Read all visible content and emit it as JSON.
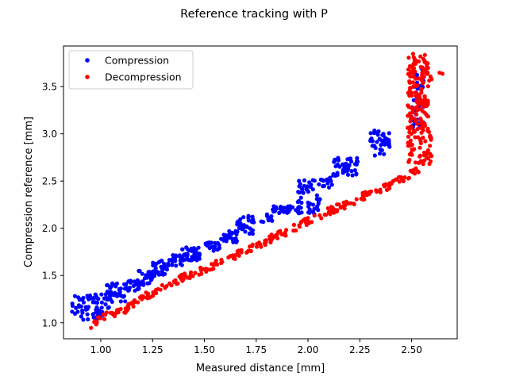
{
  "chart_data": {
    "type": "scatter",
    "title": "Reference tracking with P",
    "xlabel": "Measured distance [mm]",
    "ylabel": "Compression reference [mm]",
    "xlim": [
      0.82,
      2.72
    ],
    "ylim": [
      0.83,
      3.93
    ],
    "xticks": [
      1.0,
      1.25,
      1.5,
      1.75,
      2.0,
      2.25,
      2.5
    ],
    "xtick_labels": [
      "1.00",
      "1.25",
      "1.50",
      "1.75",
      "2.00",
      "2.25",
      "2.50"
    ],
    "yticks": [
      1.0,
      1.5,
      2.0,
      2.5,
      3.0,
      3.5
    ],
    "ytick_labels": [
      "1.0",
      "1.5",
      "2.0",
      "2.5",
      "3.0",
      "3.5"
    ],
    "grid": false,
    "legend": "upper-left",
    "series": [
      {
        "name": "Compression",
        "color": "#0000ff",
        "clusters": [
          {
            "x": [
              0.86,
              1.04
            ],
            "y": [
              1.03,
              1.3
            ],
            "n": 70
          },
          {
            "x": [
              1.02,
              1.12
            ],
            "y": [
              1.22,
              1.42
            ],
            "n": 40
          },
          {
            "x": [
              1.12,
              1.2
            ],
            "y": [
              1.33,
              1.45
            ],
            "n": 25
          },
          {
            "x": [
              1.18,
              1.26
            ],
            "y": [
              1.4,
              1.55
            ],
            "n": 30
          },
          {
            "x": [
              1.25,
              1.32
            ],
            "y": [
              1.5,
              1.66
            ],
            "n": 30
          },
          {
            "x": [
              1.32,
              1.4
            ],
            "y": [
              1.6,
              1.72
            ],
            "n": 20
          },
          {
            "x": [
              1.38,
              1.48
            ],
            "y": [
              1.66,
              1.8
            ],
            "n": 40
          },
          {
            "x": [
              1.5,
              1.58
            ],
            "y": [
              1.76,
              1.86
            ],
            "n": 20
          },
          {
            "x": [
              1.58,
              1.66
            ],
            "y": [
              1.85,
              1.97
            ],
            "n": 25
          },
          {
            "x": [
              1.65,
              1.74
            ],
            "y": [
              1.93,
              2.14
            ],
            "n": 30
          },
          {
            "x": [
              1.77,
              1.83
            ],
            "y": [
              2.06,
              2.15
            ],
            "n": 12
          },
          {
            "x": [
              1.83,
              1.97
            ],
            "y": [
              2.16,
              2.24
            ],
            "n": 30
          },
          {
            "x": [
              1.95,
              2.06
            ],
            "y": [
              2.15,
              2.55
            ],
            "n": 50
          },
          {
            "x": [
              2.06,
              2.12
            ],
            "y": [
              2.43,
              2.54
            ],
            "n": 12
          },
          {
            "x": [
              2.12,
              2.24
            ],
            "y": [
              2.55,
              2.75
            ],
            "n": 45
          },
          {
            "x": [
              2.3,
              2.4
            ],
            "y": [
              2.77,
              3.05
            ],
            "n": 40
          },
          {
            "x": [
              2.5,
              2.56
            ],
            "y": [
              3.05,
              3.3
            ],
            "n": 20
          },
          {
            "x": [
              2.5,
              2.56
            ],
            "y": [
              3.3,
              3.75
            ],
            "n": 20
          }
        ]
      },
      {
        "name": "Decompression",
        "color": "#ff0000",
        "curve": [
          [
            0.95,
            0.97
          ],
          [
            1.0,
            1.05
          ],
          [
            1.1,
            1.12
          ],
          [
            1.2,
            1.26
          ],
          [
            1.3,
            1.37
          ],
          [
            1.4,
            1.48
          ],
          [
            1.5,
            1.57
          ],
          [
            1.6,
            1.66
          ],
          [
            1.7,
            1.76
          ],
          [
            1.8,
            1.87
          ],
          [
            1.9,
            1.97
          ],
          [
            2.0,
            2.08
          ],
          [
            2.1,
            2.18
          ],
          [
            2.2,
            2.27
          ],
          [
            2.3,
            2.37
          ],
          [
            2.4,
            2.46
          ],
          [
            2.5,
            2.58
          ],
          [
            2.55,
            2.65
          ]
        ],
        "n_curve": 260,
        "clusters": [
          {
            "x": [
              2.48,
              2.6
            ],
            "y": [
              2.68,
              3.05
            ],
            "n": 60
          },
          {
            "x": [
              2.48,
              2.58
            ],
            "y": [
              3.05,
              3.85
            ],
            "n": 150
          },
          {
            "x": [
              2.56,
              2.66
            ],
            "y": [
              3.55,
              3.78
            ],
            "n": 8
          }
        ]
      }
    ]
  }
}
